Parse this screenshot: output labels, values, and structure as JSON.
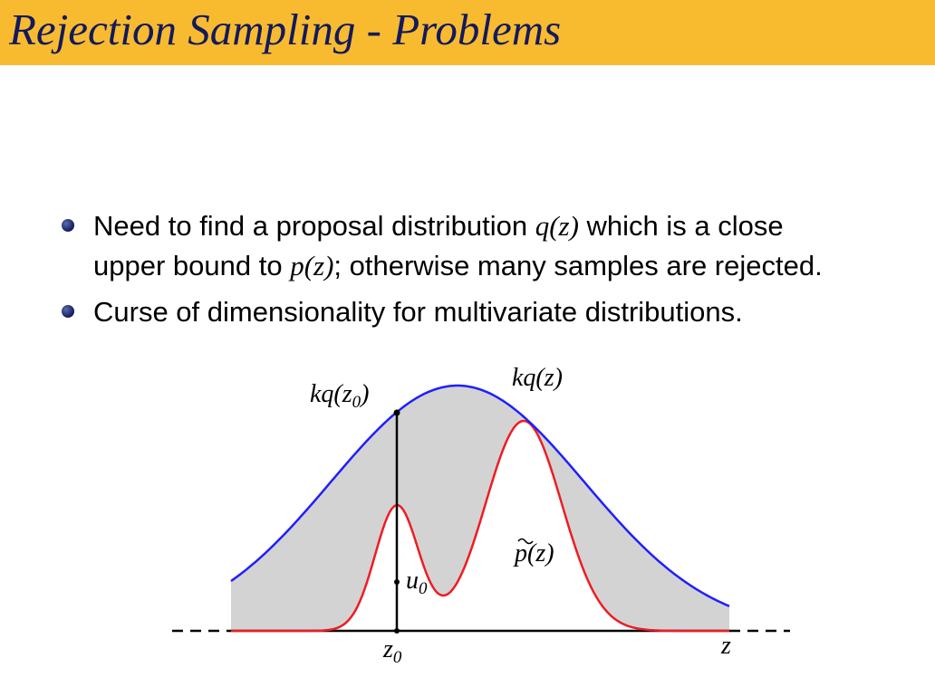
{
  "slide": {
    "title": "Rejection Sampling - Problems"
  },
  "bullets": [
    {
      "lines": [
        {
          "parts": [
            {
              "t": "Need to find a proposal distribution "
            },
            {
              "t": "q(z)",
              "math": true
            },
            {
              "t": " which is a close"
            }
          ]
        },
        {
          "parts": [
            {
              "t": "upper bound to "
            },
            {
              "t": "p(z)",
              "math": true
            },
            {
              "t": "; otherwise many samples are rejected."
            }
          ]
        }
      ]
    },
    {
      "lines": [
        {
          "parts": [
            {
              "t": "Curse of dimensionality for multivariate distributions."
            }
          ]
        }
      ]
    }
  ],
  "figure": {
    "labels": {
      "kq_z0": "kq(z0)",
      "kq_z0_main": "kq(z",
      "kq_z0_sub": "0",
      "kq_z0_close": ")",
      "kq_z": "kq(z)",
      "p_tilde_z": "p(z)",
      "u0_main": "u",
      "u0_sub": "0",
      "z0_main": "z",
      "z0_sub": "0",
      "z": "z"
    },
    "colors": {
      "envelope": "#1f1fff",
      "target": "#ee1c24",
      "fill": "#d3d3d3",
      "axis": "#000000"
    }
  }
}
